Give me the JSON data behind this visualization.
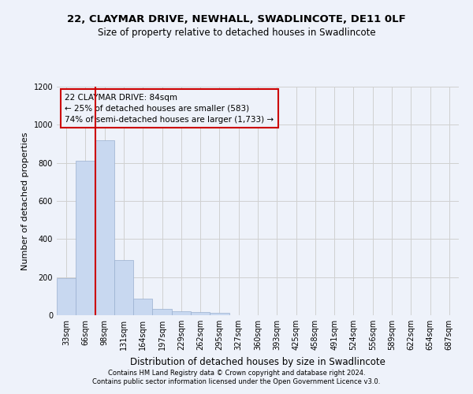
{
  "title1": "22, CLAYMAR DRIVE, NEWHALL, SWADLINCOTE, DE11 0LF",
  "title2": "Size of property relative to detached houses in Swadlincote",
  "xlabel": "Distribution of detached houses by size in Swadlincote",
  "ylabel": "Number of detached properties",
  "annotation_line1": "22 CLAYMAR DRIVE: 84sqm",
  "annotation_line2": "← 25% of detached houses are smaller (583)",
  "annotation_line3": "74% of semi-detached houses are larger (1,733) →",
  "footer1": "Contains HM Land Registry data © Crown copyright and database right 2024.",
  "footer2": "Contains public sector information licensed under the Open Government Licence v3.0.",
  "bar_color": "#c8d8f0",
  "bar_edge_color": "#9ab0d0",
  "grid_color": "#d0d0d0",
  "annotation_box_color": "#cc0000",
  "property_line_color": "#cc0000",
  "background_color": "#eef2fa",
  "categories": [
    "33sqm",
    "66sqm",
    "98sqm",
    "131sqm",
    "164sqm",
    "197sqm",
    "229sqm",
    "262sqm",
    "295sqm",
    "327sqm",
    "360sqm",
    "393sqm",
    "425sqm",
    "458sqm",
    "491sqm",
    "524sqm",
    "556sqm",
    "589sqm",
    "622sqm",
    "654sqm",
    "687sqm"
  ],
  "values": [
    193,
    810,
    920,
    290,
    88,
    35,
    20,
    18,
    12,
    0,
    0,
    0,
    0,
    0,
    0,
    0,
    0,
    0,
    0,
    0,
    0
  ],
  "property_bin_index": 1.5,
  "ylim": [
    0,
    1200
  ],
  "yticks": [
    0,
    200,
    400,
    600,
    800,
    1000,
    1200
  ],
  "title1_fontsize": 9.5,
  "title2_fontsize": 8.5,
  "ylabel_fontsize": 8,
  "xlabel_fontsize": 8.5,
  "tick_fontsize": 7,
  "annotation_fontsize": 7.5,
  "footer_fontsize": 6
}
